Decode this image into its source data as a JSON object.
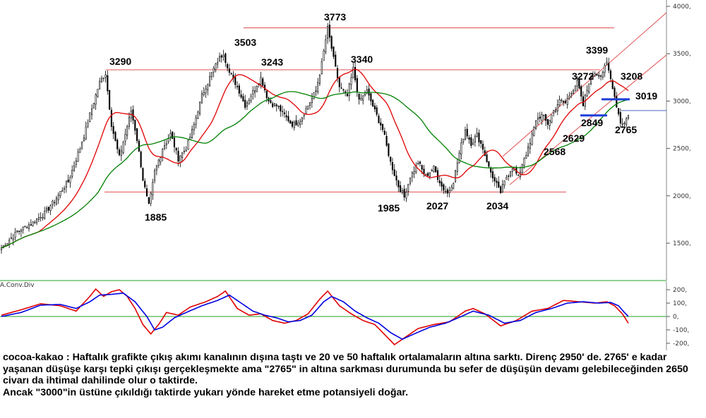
{
  "chart_data": [
    {
      "type": "candlestick",
      "ylim": [
        1200,
        4000
      ],
      "yticks": [
        1500,
        2000,
        2500,
        3000,
        3500,
        4000
      ],
      "ytick_labels": [
        "1500,",
        "2000,",
        "2500,",
        "3000,",
        "3500,",
        "4000,"
      ],
      "grid": false,
      "annotations": [
        {
          "label": "3290",
          "value": 3290
        },
        {
          "label": "1885",
          "value": 1885
        },
        {
          "label": "3503",
          "value": 3503
        },
        {
          "label": "3243",
          "value": 3243
        },
        {
          "label": "3773",
          "value": 3773
        },
        {
          "label": "3340",
          "value": 3340
        },
        {
          "label": "1985",
          "value": 1985
        },
        {
          "label": "2027",
          "value": 2027
        },
        {
          "label": "2034",
          "value": 2034
        },
        {
          "label": "3272",
          "value": 3272
        },
        {
          "label": "3399",
          "value": 3399
        },
        {
          "label": "3208",
          "value": 3208
        },
        {
          "label": "3019",
          "value": 3019
        },
        {
          "label": "2849",
          "value": 2849
        },
        {
          "label": "2629",
          "value": 2629
        },
        {
          "label": "2568",
          "value": 2568
        },
        {
          "label": "2765",
          "value": 2765
        }
      ],
      "horizontal_levels": [
        3773,
        3330,
        2040,
        2900
      ],
      "support_marks": [
        2849,
        3019
      ],
      "price_anchors": [
        [
          0,
          1450
        ],
        [
          8,
          1620
        ],
        [
          16,
          1720
        ],
        [
          22,
          1820
        ],
        [
          28,
          1980
        ],
        [
          34,
          2150
        ],
        [
          40,
          2500
        ],
        [
          45,
          2850
        ],
        [
          50,
          3200
        ],
        [
          53,
          3290
        ],
        [
          56,
          2750
        ],
        [
          60,
          2400
        ],
        [
          63,
          2650
        ],
        [
          66,
          2900
        ],
        [
          69,
          2600
        ],
        [
          72,
          2180
        ],
        [
          75,
          1885
        ],
        [
          78,
          2250
        ],
        [
          82,
          2500
        ],
        [
          86,
          2650
        ],
        [
          90,
          2400
        ],
        [
          94,
          2500
        ],
        [
          98,
          2750
        ],
        [
          102,
          3050
        ],
        [
          106,
          3250
        ],
        [
          110,
          3420
        ],
        [
          113,
          3503
        ],
        [
          116,
          3300
        ],
        [
          120,
          3150
        ],
        [
          124,
          2950
        ],
        [
          128,
          3100
        ],
        [
          132,
          3243
        ],
        [
          136,
          3000
        ],
        [
          140,
          2950
        ],
        [
          144,
          2850
        ],
        [
          148,
          2750
        ],
        [
          152,
          2800
        ],
        [
          156,
          2950
        ],
        [
          160,
          3100
        ],
        [
          163,
          3400
        ],
        [
          166,
          3773
        ],
        [
          169,
          3450
        ],
        [
          172,
          3150
        ],
        [
          176,
          3050
        ],
        [
          179,
          3340
        ],
        [
          182,
          3000
        ],
        [
          186,
          3100
        ],
        [
          190,
          2900
        ],
        [
          194,
          2700
        ],
        [
          198,
          2350
        ],
        [
          202,
          2100
        ],
        [
          205,
          1985
        ],
        [
          208,
          2200
        ],
        [
          212,
          2350
        ],
        [
          216,
          2200
        ],
        [
          220,
          2300
        ],
        [
          224,
          2100
        ],
        [
          227,
          2027
        ],
        [
          230,
          2150
        ],
        [
          233,
          2450
        ],
        [
          236,
          2700
        ],
        [
          239,
          2550
        ],
        [
          242,
          2650
        ],
        [
          245,
          2500
        ],
        [
          248,
          2300
        ],
        [
          251,
          2150
        ],
        [
          254,
          2034
        ],
        [
          257,
          2200
        ],
        [
          260,
          2300
        ],
        [
          263,
          2200
        ],
        [
          266,
          2400
        ],
        [
          269,
          2550
        ],
        [
          272,
          2800
        ],
        [
          275,
          2850
        ],
        [
          278,
          2760
        ],
        [
          281,
          2900
        ],
        [
          284,
          3000
        ],
        [
          287,
          2980
        ],
        [
          290,
          3100
        ],
        [
          293,
          3200
        ],
        [
          296,
          2950
        ],
        [
          299,
          3200
        ],
        [
          302,
          3300
        ],
        [
          305,
          3272
        ],
        [
          308,
          3399
        ],
        [
          311,
          3150
        ],
        [
          313,
          2950
        ],
        [
          315,
          2780
        ],
        [
          317,
          2765
        ],
        [
          319,
          2860
        ]
      ]
    },
    {
      "type": "line",
      "title": "A.Conv.Div",
      "ylim": [
        -230,
        240
      ],
      "yticks": [
        -200,
        -100,
        0,
        100,
        200
      ],
      "ytick_labels": [
        "-200,",
        "-100,",
        "0,",
        "100,",
        "200,"
      ],
      "series": [
        {
          "color": "#e00000",
          "anchors": [
            [
              0,
              10
            ],
            [
              10,
              50
            ],
            [
              20,
              95
            ],
            [
              30,
              80
            ],
            [
              38,
              40
            ],
            [
              45,
              150
            ],
            [
              48,
              205
            ],
            [
              52,
              150
            ],
            [
              56,
              185
            ],
            [
              60,
              200
            ],
            [
              64,
              150
            ],
            [
              68,
              60
            ],
            [
              72,
              -60
            ],
            [
              76,
              -130
            ],
            [
              80,
              -60
            ],
            [
              84,
              30
            ],
            [
              90,
              10
            ],
            [
              96,
              70
            ],
            [
              104,
              110
            ],
            [
              110,
              150
            ],
            [
              114,
              190
            ],
            [
              120,
              60
            ],
            [
              126,
              10
            ],
            [
              132,
              20
            ],
            [
              138,
              -30
            ],
            [
              144,
              -50
            ],
            [
              150,
              -30
            ],
            [
              156,
              20
            ],
            [
              162,
              130
            ],
            [
              166,
              190
            ],
            [
              172,
              80
            ],
            [
              178,
              20
            ],
            [
              184,
              -30
            ],
            [
              190,
              -60
            ],
            [
              196,
              -150
            ],
            [
              200,
              -210
            ],
            [
              206,
              -150
            ],
            [
              212,
              -90
            ],
            [
              220,
              -60
            ],
            [
              228,
              -40
            ],
            [
              236,
              40
            ],
            [
              240,
              60
            ],
            [
              246,
              20
            ],
            [
              254,
              -70
            ],
            [
              262,
              -30
            ],
            [
              270,
              40
            ],
            [
              278,
              60
            ],
            [
              286,
              120
            ],
            [
              294,
              110
            ],
            [
              302,
              100
            ],
            [
              308,
              110
            ],
            [
              312,
              80
            ],
            [
              316,
              20
            ],
            [
              319,
              -50
            ]
          ]
        },
        {
          "color": "#0000e0",
          "anchors": [
            [
              0,
              0
            ],
            [
              10,
              30
            ],
            [
              20,
              85
            ],
            [
              30,
              90
            ],
            [
              38,
              60
            ],
            [
              45,
              110
            ],
            [
              50,
              160
            ],
            [
              56,
              165
            ],
            [
              62,
              175
            ],
            [
              68,
              110
            ],
            [
              74,
              0
            ],
            [
              78,
              -100
            ],
            [
              82,
              -80
            ],
            [
              88,
              -10
            ],
            [
              94,
              30
            ],
            [
              102,
              80
            ],
            [
              110,
              120
            ],
            [
              116,
              160
            ],
            [
              122,
              100
            ],
            [
              128,
              40
            ],
            [
              134,
              10
            ],
            [
              140,
              -10
            ],
            [
              146,
              -40
            ],
            [
              152,
              -30
            ],
            [
              158,
              10
            ],
            [
              164,
              110
            ],
            [
              168,
              150
            ],
            [
              174,
              110
            ],
            [
              180,
              40
            ],
            [
              186,
              -10
            ],
            [
              192,
              -50
            ],
            [
              198,
              -120
            ],
            [
              204,
              -170
            ],
            [
              210,
              -130
            ],
            [
              218,
              -80
            ],
            [
              226,
              -50
            ],
            [
              234,
              0
            ],
            [
              240,
              40
            ],
            [
              248,
              10
            ],
            [
              256,
              -50
            ],
            [
              264,
              -30
            ],
            [
              272,
              30
            ],
            [
              280,
              60
            ],
            [
              288,
              100
            ],
            [
              296,
              110
            ],
            [
              304,
              100
            ],
            [
              310,
              105
            ],
            [
              314,
              80
            ],
            [
              317,
              30
            ],
            [
              319,
              0
            ]
          ]
        }
      ]
    }
  ],
  "commentary": {
    "paragraph1": "cocoa-kakao : Haftalık grafikte çıkış akımı kanalının dışına taştı ve 20 ve 50 haftalık ortalamaların altına sarktı. Direnç 2950' de. 2765' e kadar yaşanan düşüşe karşı tepki çıkışı gerçekleşmekte ama \"2765\" in altına sarkması durumunda bu sefer de düşüşün devamı gelebileceğinden 2650 civarı da ihtimal dahilinde olur o taktirde.",
    "paragraph2": "Ancak \"3000\"in üstüne çıkıldığı taktirde yukarı yönde hareket etme potansiyeli doğar."
  },
  "colors": {
    "candle": "#000000",
    "ma20": "#e00000",
    "ma50": "#008000",
    "level_lines": "#e05050",
    "support_marks": "#1e3fd8",
    "ref_line": "#5060c0"
  }
}
